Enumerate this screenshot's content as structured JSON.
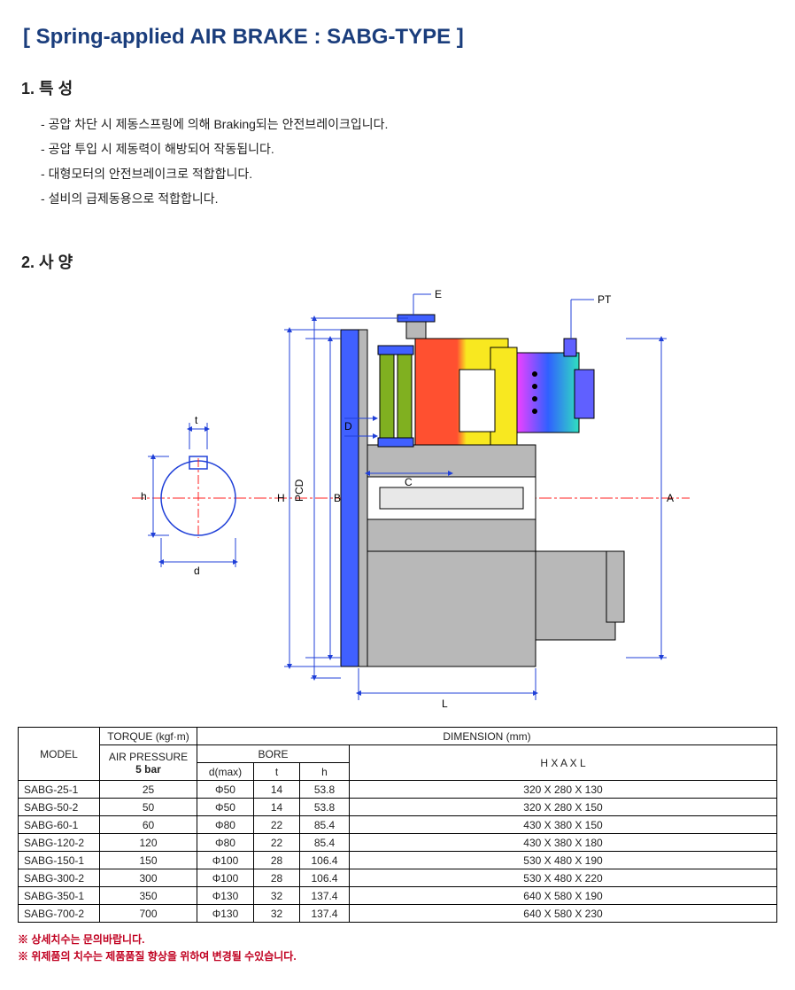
{
  "title": "[ Spring-applied AIR BRAKE  :  SABG-TYPE ]",
  "section1": {
    "num": "1.",
    "label": "특 성"
  },
  "section2": {
    "num": "2.",
    "label": "사 양"
  },
  "features": [
    "공압 차단 시 제동스프링에 의해 Braking되는 안전브레이크입니다.",
    "공압 투입 시 제동력이 해방되어 작동됩니다.",
    "대형모터의 안전브레이크로 적합합니다.",
    "설비의 급제동용으로 적합합니다."
  ],
  "diagram": {
    "labels": {
      "E": "E",
      "PT": "PT",
      "D": "D",
      "C": "C",
      "L": "L",
      "A": "A",
      "B": "B",
      "H": "H",
      "PCD": "PCD",
      "t": "t",
      "h": "h",
      "d": "d"
    },
    "colors": {
      "dim": "#2040d8",
      "center": "#ff2020",
      "flange": "#4060ff",
      "spring": "#80b020",
      "body_outer": "#f8e820",
      "body_inner": "#ff5030",
      "housing": "#30b0f0",
      "grey": "#b8b8b8",
      "outline": "#000000"
    }
  },
  "table": {
    "headers": {
      "model": "MODEL",
      "torque": "TORQUE (kgf·m)",
      "dimension": "DIMENSION (mm)",
      "airpress": "AIR PRESSURE",
      "fivebar": "5 bar",
      "bore": "BORE",
      "dmax": "d(max)",
      "t": "t",
      "h": "h",
      "haxl": "H X A X L"
    },
    "rows": [
      {
        "model": "SABG-25-1",
        "torque": "25",
        "d": "Φ50",
        "t": "14",
        "h": "53.8",
        "hal": "320 X 280 X 130"
      },
      {
        "model": "SABG-50-2",
        "torque": "50",
        "d": "Φ50",
        "t": "14",
        "h": "53.8",
        "hal": "320 X 280 X 150"
      },
      {
        "model": "SABG-60-1",
        "torque": "60",
        "d": "Φ80",
        "t": "22",
        "h": "85.4",
        "hal": "430 X 380 X 150"
      },
      {
        "model": "SABG-120-2",
        "torque": "120",
        "d": "Φ80",
        "t": "22",
        "h": "85.4",
        "hal": "430 X 380 X 180"
      },
      {
        "model": "SABG-150-1",
        "torque": "150",
        "d": "Φ100",
        "t": "28",
        "h": "106.4",
        "hal": "530 X 480 X 190"
      },
      {
        "model": "SABG-300-2",
        "torque": "300",
        "d": "Φ100",
        "t": "28",
        "h": "106.4",
        "hal": "530 X 480 X 220"
      },
      {
        "model": "SABG-350-1",
        "torque": "350",
        "d": "Φ130",
        "t": "32",
        "h": "137.4",
        "hal": "640 X 580 X 190"
      },
      {
        "model": "SABG-700-2",
        "torque": "700",
        "d": "Φ130",
        "t": "32",
        "h": "137.4",
        "hal": "640 X 580 X 230"
      }
    ]
  },
  "notes": [
    "※ 상세치수는 문의바랍니다.",
    "※ 위제품의 치수는 제품품질 향상을 위하여 변경될 수있습니다."
  ]
}
